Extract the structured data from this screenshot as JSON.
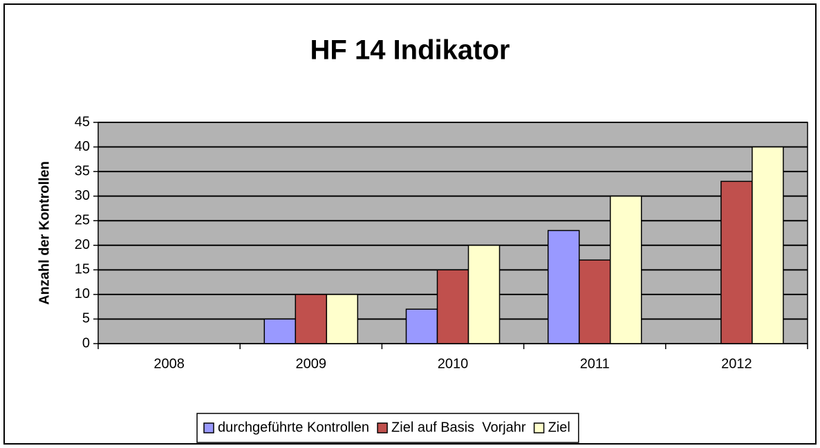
{
  "chart_data": {
    "type": "bar",
    "title": "HF 14 Indikator",
    "ylabel": "Anzahl der Kontrollen",
    "categories": [
      "2008",
      "2009",
      "2010",
      "2011",
      "2012"
    ],
    "series": [
      {
        "name": "durchgeführte Kontrollen",
        "color": "#9999ff",
        "values": [
          null,
          5,
          7,
          23,
          null
        ]
      },
      {
        "name": "Ziel auf Basis  Vorjahr",
        "color": "#c0504d",
        "values": [
          null,
          10,
          15,
          17,
          33
        ]
      },
      {
        "name": "Ziel",
        "color": "#ffffcc",
        "values": [
          null,
          10,
          20,
          30,
          40
        ]
      }
    ],
    "ylim": [
      0,
      45
    ],
    "yticks": [
      0,
      5,
      10,
      15,
      20,
      25,
      30,
      35,
      40,
      45
    ],
    "grid": true,
    "legend": "bottom",
    "plot_background": "#b3b3b3"
  }
}
